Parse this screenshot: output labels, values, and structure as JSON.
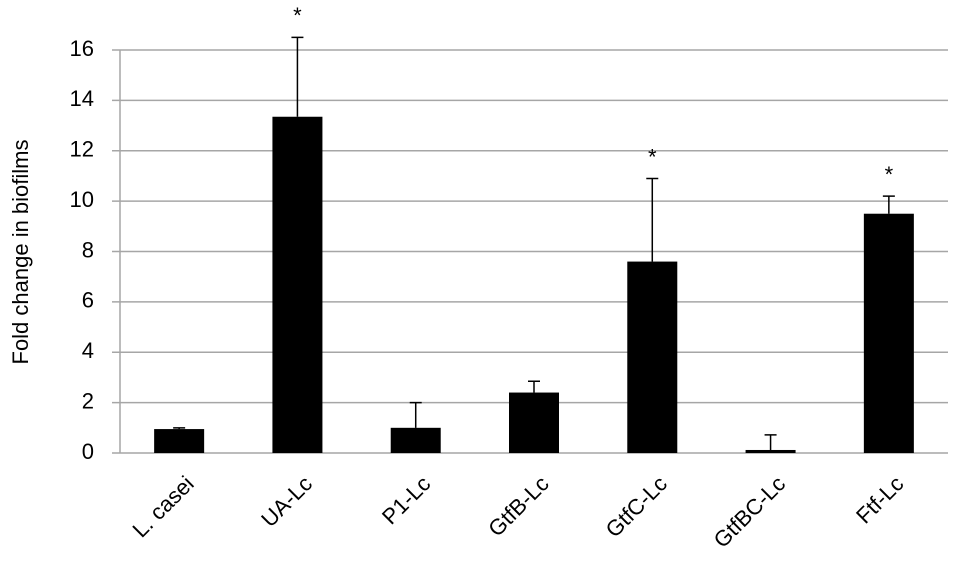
{
  "chart_data": {
    "type": "bar",
    "y_label": "Fold change in biofilms",
    "categories": [
      "L. casei",
      "UA-Lc",
      "P1-Lc",
      "GtfB-Lc",
      "GtfC-Lc",
      "GtfBC-Lc",
      "Ftf-Lc"
    ],
    "values": [
      0.95,
      13.35,
      1.0,
      2.4,
      7.6,
      0.12,
      9.5
    ],
    "errors": [
      0.05,
      3.15,
      1.0,
      0.45,
      3.3,
      0.6,
      0.7
    ],
    "annotations": [
      null,
      "*",
      null,
      null,
      "*",
      null,
      "*"
    ],
    "color": "#000000",
    "ylim": [
      0,
      16
    ],
    "yticks": [
      0,
      2,
      4,
      6,
      8,
      10,
      12,
      14,
      16
    ],
    "grid": true
  }
}
